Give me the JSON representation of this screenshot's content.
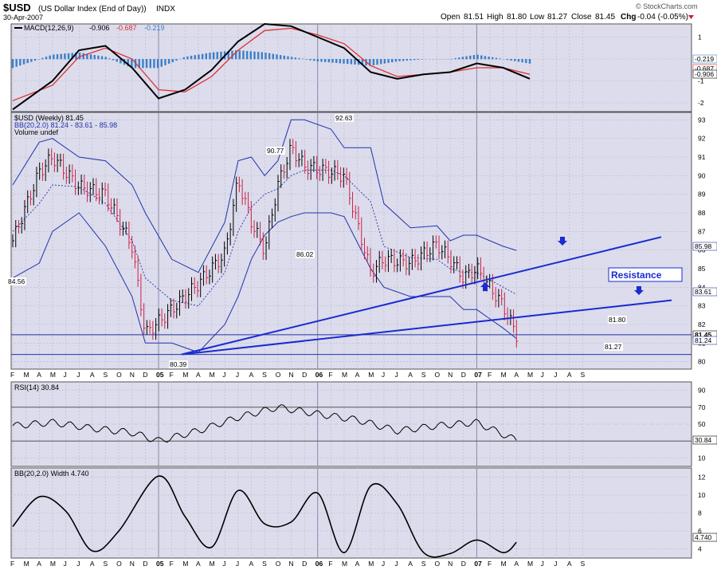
{
  "header": {
    "symbol": "$USD",
    "name": "(US Dollar Index (End of Day))",
    "exchange": "INDX",
    "date": "30-Apr-2007",
    "open_label": "Open",
    "open": "81.51",
    "high_label": "High",
    "high": "81.80",
    "low_label": "Low",
    "low": "81.27",
    "close_label": "Close",
    "close": "81.45",
    "chg_label": "Chg",
    "chg": "-0.04 (-0.05%)",
    "watermark": "© StockCharts.com"
  },
  "colors": {
    "panel_bg": "#dcdcec",
    "price_line": "#2233aa",
    "trendline": "#1a2bd0",
    "up_bar": "#000000",
    "down_bar": "#cc2244",
    "macd_line": "#000000",
    "signal_line": "#e03030",
    "histogram": "#3a7fc8",
    "arrow": "#1a2bd0"
  },
  "x_axis_labels": [
    "F",
    "M",
    "A",
    "M",
    "J",
    "J",
    "A",
    "S",
    "O",
    "N",
    "D",
    "05",
    "F",
    "M",
    "A",
    "M",
    "J",
    "J",
    "A",
    "S",
    "O",
    "N",
    "D",
    "06",
    "F",
    "M",
    "A",
    "M",
    "J",
    "J",
    "A",
    "S",
    "O",
    "N",
    "D",
    "07",
    "F",
    "M",
    "A",
    "M",
    "J",
    "J",
    "A",
    "S"
  ],
  "macd_panel": {
    "legend_prefix": "MACD(12,26,9)",
    "macd": "-0.906",
    "signal": "-0.687",
    "histogram": "-0.219",
    "y_ticks": [
      "1",
      "0",
      "-1",
      "-2"
    ],
    "right_labels": [
      "-0.219",
      "-0.687",
      "-0.906"
    ]
  },
  "price_panel": {
    "legend_line1": "$USD (Weekly) 81.45",
    "legend_line2": "BB(20,2.0) 81.24 - 83.61 - 85.98",
    "legend_line3": "Volume undef",
    "y_ticks": [
      "93",
      "92",
      "91",
      "90",
      "89",
      "88",
      "87",
      "86",
      "85",
      "84",
      "83",
      "82",
      "81",
      "80"
    ],
    "right_labels": [
      "85.98",
      "83.61",
      "81.45",
      "81.24"
    ],
    "annotations": [
      "84.56",
      "90.77",
      "92.63",
      "86.02",
      "80.39",
      "81.80",
      "81.27"
    ],
    "resistance_label": "Resistance"
  },
  "rsi_panel": {
    "legend": "RSI(14) 30.84",
    "y_ticks": [
      "90",
      "70",
      "50",
      "30",
      "10"
    ],
    "value_label": "30.84"
  },
  "bbw_panel": {
    "legend": "BB(20,2.0) Width 4.740",
    "y_ticks": [
      "12",
      "10",
      "8",
      "6",
      "4"
    ],
    "value_label": "4.740"
  },
  "chart_data": [
    {
      "type": "line",
      "title": "MACD(12,26,9)",
      "x": [
        "2004-02",
        "2004-05",
        "2004-07",
        "2004-09",
        "2004-11",
        "2005-01",
        "2005-03",
        "2005-05",
        "2005-07",
        "2005-09",
        "2005-11",
        "2006-01",
        "2006-03",
        "2006-05",
        "2006-07",
        "2006-09",
        "2006-11",
        "2007-01",
        "2007-03",
        "2007-05"
      ],
      "series": [
        {
          "name": "MACD",
          "values": [
            -2.3,
            -1.0,
            0.4,
            0.6,
            -0.4,
            -1.8,
            -1.4,
            -0.5,
            0.8,
            1.6,
            1.5,
            1.0,
            0.5,
            -0.6,
            -0.9,
            -0.7,
            -0.6,
            -0.2,
            -0.4,
            -0.9
          ]
        },
        {
          "name": "Signal",
          "values": [
            -1.9,
            -1.2,
            0.1,
            0.5,
            0.0,
            -1.4,
            -1.5,
            -0.8,
            0.4,
            1.3,
            1.4,
            1.1,
            0.7,
            -0.3,
            -0.8,
            -0.7,
            -0.6,
            -0.4,
            -0.4,
            -0.7
          ]
        }
      ],
      "ylim": [
        -2.4,
        1.6
      ]
    },
    {
      "type": "line",
      "title": "$USD (Weekly)",
      "x": [
        "2004-02",
        "2004-04",
        "2004-05",
        "2004-07",
        "2004-09",
        "2004-11",
        "2004-12",
        "2005-02",
        "2005-04",
        "2005-06",
        "2005-07",
        "2005-08",
        "2005-09",
        "2005-10",
        "2005-11",
        "2005-12",
        "2006-02",
        "2006-03",
        "2006-05",
        "2006-06",
        "2006-08",
        "2006-10",
        "2006-11",
        "2006-12",
        "2007-01",
        "2007-02",
        "2007-03",
        "2007-04"
      ],
      "series": [
        {
          "name": "$USD",
          "values": [
            86.5,
            90.2,
            91.0,
            89.4,
            89.0,
            86.2,
            81.5,
            82.8,
            84.2,
            85.8,
            89.8,
            87.5,
            86.0,
            89.5,
            91.5,
            90.5,
            90.2,
            90.0,
            84.8,
            85.5,
            85.3,
            86.3,
            85.5,
            84.5,
            85.0,
            84.0,
            83.0,
            81.45
          ]
        },
        {
          "name": "BB Upper",
          "values": [
            89.5,
            91.8,
            92.0,
            91.0,
            90.8,
            89.5,
            88.0,
            85.5,
            84.8,
            87.5,
            90.8,
            91.0,
            90.0,
            90.8,
            93.0,
            93.0,
            92.5,
            91.5,
            91.5,
            88.5,
            87.2,
            87.3,
            86.5,
            86.8,
            86.8,
            86.5,
            86.2,
            85.98
          ]
        },
        {
          "name": "BB Mid",
          "values": [
            87.0,
            88.5,
            89.5,
            89.4,
            88.5,
            86.5,
            84.5,
            83.3,
            83.0,
            84.8,
            87.0,
            88.3,
            89.0,
            89.3,
            90.0,
            90.3,
            90.3,
            90.0,
            88.6,
            86.2,
            85.6,
            85.5,
            85.0,
            84.8,
            84.8,
            84.4,
            84.0,
            83.61
          ]
        },
        {
          "name": "BB Lower",
          "values": [
            84.5,
            85.3,
            87.0,
            88.0,
            86.2,
            83.5,
            81.0,
            81.0,
            80.5,
            82.0,
            83.5,
            85.5,
            86.8,
            87.5,
            87.8,
            88.0,
            88.0,
            87.8,
            85.0,
            84.0,
            83.5,
            83.5,
            83.5,
            82.8,
            82.8,
            82.3,
            81.8,
            81.24
          ]
        }
      ],
      "annotations": [
        {
          "text": "84.56",
          "value": 84.56
        },
        {
          "text": "90.77",
          "value": 90.77
        },
        {
          "text": "92.63",
          "value": 92.63
        },
        {
          "text": "86.02",
          "value": 86.02
        },
        {
          "text": "80.39",
          "value": 80.39
        },
        {
          "text": "81.80",
          "value": 81.8
        },
        {
          "text": "81.27",
          "value": 81.27
        },
        {
          "text": "Resistance"
        }
      ],
      "ylim": [
        79.6,
        93.4
      ]
    },
    {
      "type": "line",
      "title": "RSI(14)",
      "x": [
        "2004-02",
        "2004-05",
        "2004-08",
        "2004-11",
        "2005-01",
        "2005-04",
        "2005-07",
        "2005-10",
        "2006-01",
        "2006-04",
        "2006-07",
        "2006-10",
        "2007-01",
        "2007-04"
      ],
      "series": [
        {
          "name": "RSI(14)",
          "values": [
            48,
            52,
            45,
            40,
            30,
            42,
            58,
            70,
            62,
            55,
            42,
            48,
            52,
            30.84
          ]
        }
      ],
      "ylim": [
        0,
        100
      ]
    },
    {
      "type": "line",
      "title": "BB(20,2.0) Width",
      "x": [
        "2004-02",
        "2004-04",
        "2004-06",
        "2004-08",
        "2004-10",
        "2005-01",
        "2005-03",
        "2005-05",
        "2005-07",
        "2005-09",
        "2005-11",
        "2006-01",
        "2006-03",
        "2006-05",
        "2006-07",
        "2006-09",
        "2006-11",
        "2007-01",
        "2007-03",
        "2007-04"
      ],
      "series": [
        {
          "name": "BB Width",
          "values": [
            6.5,
            9.8,
            8.2,
            3.8,
            6.0,
            12.1,
            7.6,
            4.2,
            10.5,
            6.8,
            7.0,
            10.2,
            3.6,
            11.0,
            9.0,
            3.6,
            3.5,
            5.0,
            3.6,
            4.74
          ]
        }
      ],
      "ylim": [
        3,
        13
      ]
    }
  ]
}
